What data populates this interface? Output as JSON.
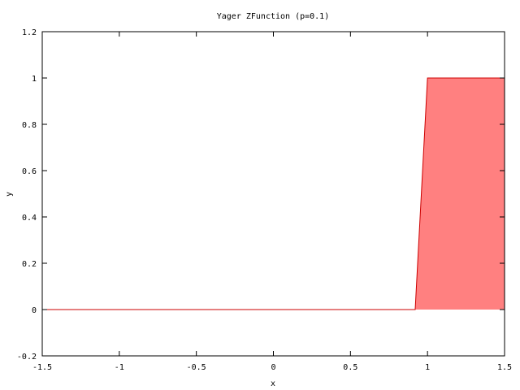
{
  "chart_data": {
    "type": "area",
    "title": "Yager ZFunction (p=0.1)",
    "xlabel": "x",
    "ylabel": "y",
    "xlim": [
      -1.5,
      1.5
    ],
    "ylim": [
      -0.2,
      1.2
    ],
    "xticks": [
      -1.5,
      -1,
      -0.5,
      0,
      0.5,
      1,
      1.5
    ],
    "xtick_labels": [
      "-1.5",
      "-1",
      "-0.5",
      "0",
      "0.5",
      "1",
      "1.5"
    ],
    "yticks": [
      -0.2,
      0,
      0.2,
      0.4,
      0.6,
      0.8,
      1,
      1.2
    ],
    "ytick_labels": [
      "-0.2",
      "0",
      "0.2",
      "0.4",
      "0.6",
      "0.8",
      "1",
      "1.2"
    ],
    "grid": false,
    "legend": "none",
    "series": [
      {
        "x": [
          -1.5,
          0.92,
          1.0,
          1.5
        ],
        "y": [
          0,
          0,
          1,
          1
        ],
        "fill_color": "#ff8080",
        "line_color": "#cc0000"
      }
    ]
  }
}
